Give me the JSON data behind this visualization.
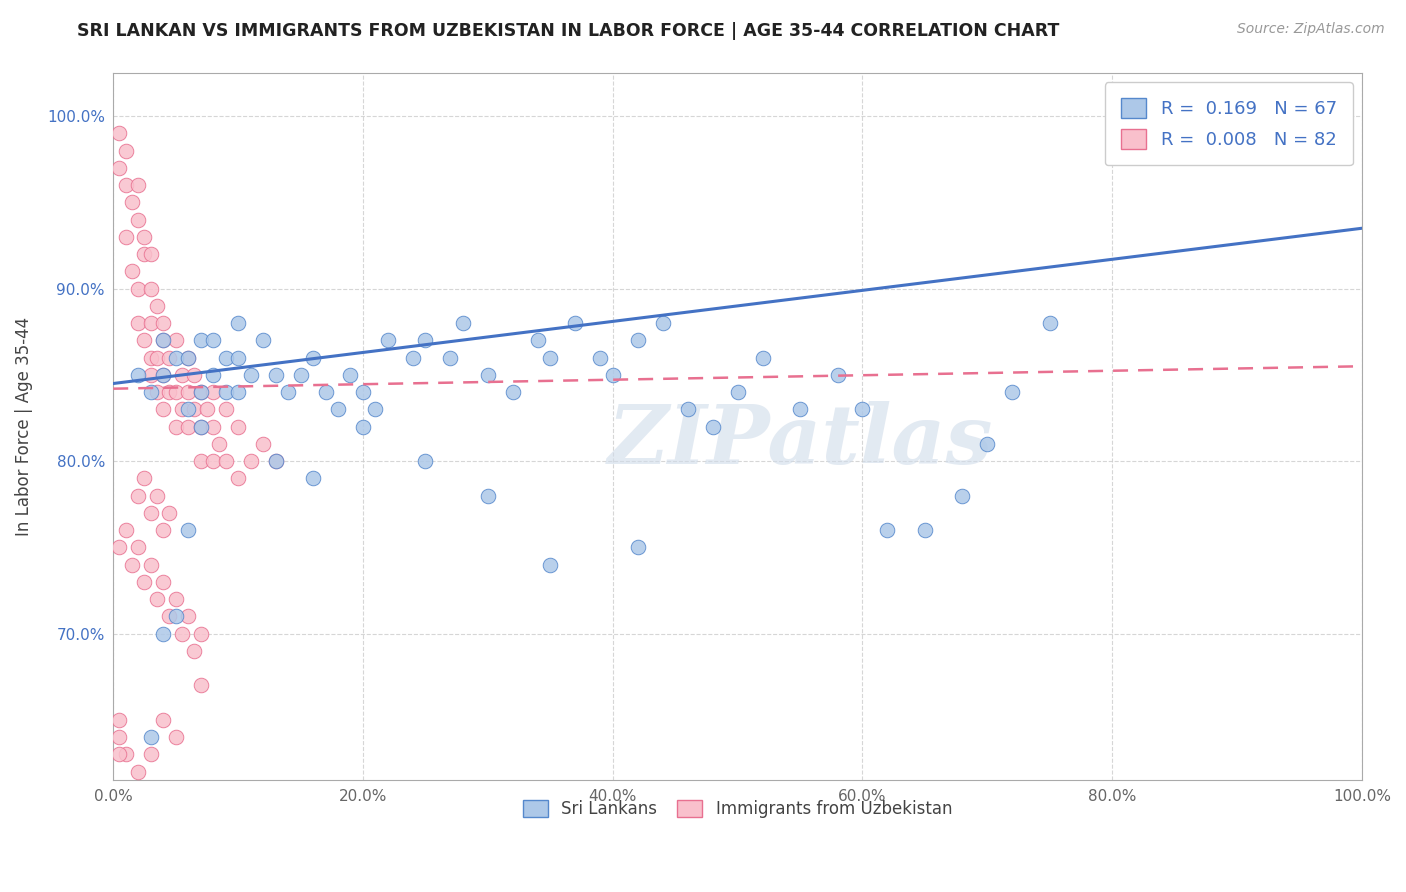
{
  "title": "SRI LANKAN VS IMMIGRANTS FROM UZBEKISTAN IN LABOR FORCE | AGE 35-44 CORRELATION CHART",
  "source_text": "Source: ZipAtlas.com",
  "ylabel": "In Labor Force | Age 35-44",
  "blue_R": "0.169",
  "blue_N": "67",
  "pink_R": "0.008",
  "pink_N": "82",
  "blue_color": "#adc8e8",
  "blue_edge_color": "#5588cc",
  "blue_line_color": "#4472c4",
  "pink_color": "#f9c0cc",
  "pink_edge_color": "#e87090",
  "pink_line_color": "#e87090",
  "watermark": "ZIPatlas",
  "legend_label_blue": "Sri Lankans",
  "legend_label_pink": "Immigrants from Uzbekistan",
  "xlim": [
    0.0,
    1.0
  ],
  "ylim": [
    0.615,
    1.025
  ],
  "yticks": [
    0.7,
    0.8,
    0.9,
    1.0
  ],
  "ytick_labels": [
    "70.0%",
    "80.0%",
    "90.0%",
    "100.0%"
  ],
  "xtick_labels": [
    "0.0%",
    "20.0%",
    "40.0%",
    "60.0%",
    "80.0%",
    "100.0%"
  ],
  "blue_trend_x": [
    0.0,
    1.0
  ],
  "blue_trend_y": [
    0.845,
    0.935
  ],
  "pink_trend_x": [
    0.0,
    1.0
  ],
  "pink_trend_y": [
    0.842,
    0.855
  ],
  "blue_x": [
    0.02,
    0.03,
    0.04,
    0.04,
    0.05,
    0.06,
    0.06,
    0.07,
    0.07,
    0.08,
    0.08,
    0.09,
    0.09,
    0.1,
    0.1,
    0.11,
    0.12,
    0.13,
    0.14,
    0.15,
    0.16,
    0.17,
    0.18,
    0.19,
    0.2,
    0.21,
    0.22,
    0.24,
    0.25,
    0.27,
    0.28,
    0.3,
    0.32,
    0.34,
    0.35,
    0.37,
    0.39,
    0.4,
    0.42,
    0.44,
    0.46,
    0.48,
    0.5,
    0.52,
    0.55,
    0.58,
    0.6,
    0.62,
    0.65,
    0.68,
    0.7,
    0.72,
    0.75,
    0.42,
    0.3,
    0.35,
    0.25,
    0.2,
    0.16,
    0.13,
    0.1,
    0.07,
    0.06,
    0.05,
    0.04,
    0.03,
    0.93
  ],
  "blue_y": [
    0.85,
    0.84,
    0.87,
    0.85,
    0.86,
    0.83,
    0.86,
    0.84,
    0.87,
    0.85,
    0.87,
    0.86,
    0.84,
    0.88,
    0.86,
    0.85,
    0.87,
    0.85,
    0.84,
    0.85,
    0.86,
    0.84,
    0.83,
    0.85,
    0.84,
    0.83,
    0.87,
    0.86,
    0.87,
    0.86,
    0.88,
    0.85,
    0.84,
    0.87,
    0.86,
    0.88,
    0.86,
    0.85,
    0.87,
    0.88,
    0.83,
    0.82,
    0.84,
    0.86,
    0.83,
    0.85,
    0.83,
    0.76,
    0.76,
    0.78,
    0.81,
    0.84,
    0.88,
    0.75,
    0.78,
    0.74,
    0.8,
    0.82,
    0.79,
    0.8,
    0.84,
    0.82,
    0.76,
    0.71,
    0.7,
    0.64,
    1.0
  ],
  "pink_x": [
    0.005,
    0.005,
    0.01,
    0.01,
    0.01,
    0.015,
    0.015,
    0.02,
    0.02,
    0.02,
    0.02,
    0.025,
    0.025,
    0.025,
    0.03,
    0.03,
    0.03,
    0.03,
    0.03,
    0.035,
    0.035,
    0.035,
    0.04,
    0.04,
    0.04,
    0.04,
    0.045,
    0.045,
    0.05,
    0.05,
    0.05,
    0.055,
    0.055,
    0.06,
    0.06,
    0.06,
    0.065,
    0.065,
    0.07,
    0.07,
    0.07,
    0.075,
    0.08,
    0.08,
    0.08,
    0.085,
    0.09,
    0.09,
    0.1,
    0.1,
    0.11,
    0.12,
    0.13,
    0.02,
    0.025,
    0.03,
    0.035,
    0.04,
    0.045,
    0.005,
    0.01,
    0.015,
    0.02,
    0.025,
    0.03,
    0.035,
    0.04,
    0.045,
    0.05,
    0.055,
    0.06,
    0.065,
    0.07,
    0.07,
    0.05,
    0.04,
    0.03,
    0.02,
    0.01,
    0.005,
    0.005,
    0.005
  ],
  "pink_y": [
    0.97,
    0.99,
    0.96,
    0.98,
    0.93,
    0.95,
    0.91,
    0.94,
    0.9,
    0.96,
    0.88,
    0.92,
    0.87,
    0.93,
    0.92,
    0.88,
    0.86,
    0.9,
    0.85,
    0.89,
    0.86,
    0.84,
    0.88,
    0.85,
    0.83,
    0.87,
    0.86,
    0.84,
    0.87,
    0.84,
    0.82,
    0.85,
    0.83,
    0.86,
    0.84,
    0.82,
    0.85,
    0.83,
    0.84,
    0.82,
    0.8,
    0.83,
    0.82,
    0.84,
    0.8,
    0.81,
    0.83,
    0.8,
    0.82,
    0.79,
    0.8,
    0.81,
    0.8,
    0.78,
    0.79,
    0.77,
    0.78,
    0.76,
    0.77,
    0.75,
    0.76,
    0.74,
    0.75,
    0.73,
    0.74,
    0.72,
    0.73,
    0.71,
    0.72,
    0.7,
    0.71,
    0.69,
    0.7,
    0.67,
    0.64,
    0.65,
    0.63,
    0.62,
    0.63,
    0.65,
    0.64,
    0.63
  ]
}
